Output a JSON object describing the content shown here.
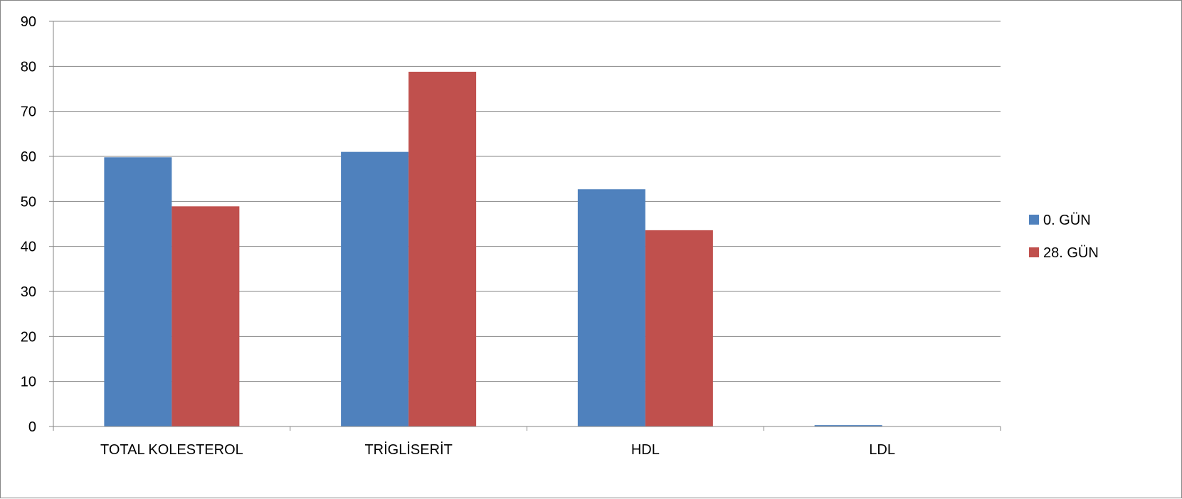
{
  "chart_data": {
    "type": "bar",
    "categories": [
      "TOTAL KOLESTEROL",
      "TRİGLİSERİT",
      "HDL",
      "LDL"
    ],
    "series": [
      {
        "name": "0. GÜN",
        "color": "#4F81BD",
        "values": [
          59.8,
          61.0,
          52.7,
          0.3
        ]
      },
      {
        "name": "28. GÜN",
        "color": "#C0504D",
        "values": [
          48.9,
          78.8,
          43.6,
          0
        ]
      }
    ],
    "title": "",
    "xlabel": "",
    "ylabel": "",
    "ylim": [
      0,
      90
    ],
    "yticks": [
      0,
      10,
      20,
      30,
      40,
      50,
      60,
      70,
      80,
      90
    ],
    "grid": true,
    "legend_position": "right"
  }
}
